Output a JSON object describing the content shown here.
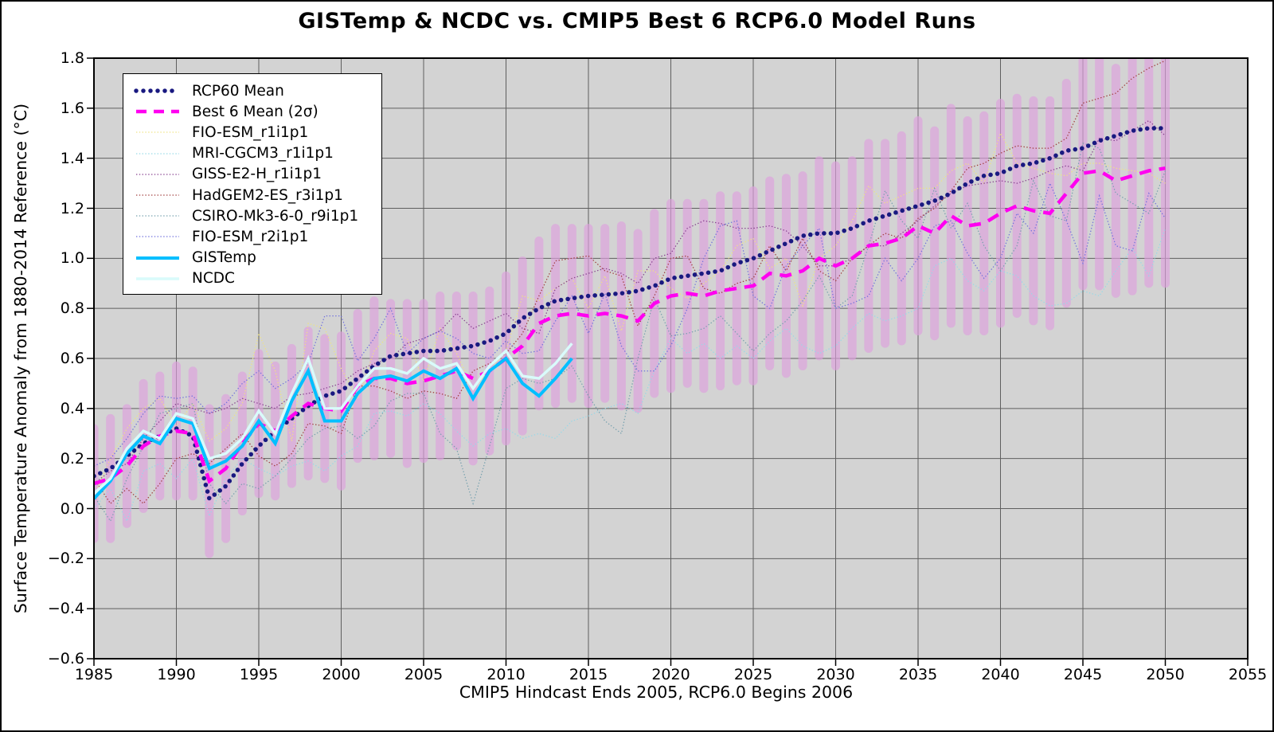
{
  "figure": {
    "title": "GISTemp & NCDC vs. CMIP5 Best 6 RCP6.0 Model Runs",
    "xlabel": "CMIP5 Hindcast Ends 2005, RCP6.0 Begins 2006",
    "ylabel": "Surface Temperature Anomaly from 1880-2014 Reference (°C)"
  },
  "colors": {
    "figure_bg": "#ffffff",
    "plot_bg": "#d3d3d3",
    "grid": "#5f5f5f",
    "spine": "#000000",
    "tick": "#000000"
  },
  "axes": {
    "x_tick_values": [
      1985,
      1990,
      1995,
      2000,
      2005,
      2010,
      2015,
      2020,
      2025,
      2030,
      2035,
      2040,
      2045,
      2050,
      2055
    ],
    "x_tick_labels": [
      "1985",
      "1990",
      "1995",
      "2000",
      "2005",
      "2010",
      "2015",
      "2020",
      "2025",
      "2030",
      "2035",
      "2040",
      "2045",
      "2050",
      "2055"
    ],
    "y_tick_values": [
      -0.6,
      -0.4,
      -0.2,
      0.0,
      0.2,
      0.4,
      0.6,
      0.8,
      1.0,
      1.2,
      1.4,
      1.6,
      1.8
    ],
    "y_tick_labels": [
      "−0.6",
      "−0.4",
      "−0.2",
      "0.0",
      "0.2",
      "0.4",
      "0.6",
      "0.8",
      "1.0",
      "1.2",
      "1.4",
      "1.6",
      "1.8"
    ]
  },
  "chart_data": {
    "type": "line",
    "title": "GISTemp & NCDC vs. CMIP5 Best 6 RCP6.0 Model Runs",
    "xlabel": "CMIP5 Hindcast Ends 2005, RCP6.0 Begins 2006",
    "ylabel": "Surface Temperature Anomaly from 1880-2014 Reference (°C)",
    "xlim": [
      1985,
      2055
    ],
    "ylim": [
      -0.6,
      1.8
    ],
    "grid": true,
    "legend_position": "upper left",
    "x": [
      1985,
      1986,
      1987,
      1988,
      1989,
      1990,
      1991,
      1992,
      1993,
      1994,
      1995,
      1996,
      1997,
      1998,
      1999,
      2000,
      2001,
      2002,
      2003,
      2004,
      2005,
      2006,
      2007,
      2008,
      2009,
      2010,
      2011,
      2012,
      2013,
      2014,
      2015,
      2016,
      2017,
      2018,
      2019,
      2020,
      2021,
      2022,
      2023,
      2024,
      2025,
      2026,
      2027,
      2028,
      2029,
      2030,
      2031,
      2032,
      2033,
      2034,
      2035,
      2036,
      2037,
      2038,
      2039,
      2040,
      2041,
      2042,
      2043,
      2044,
      2045,
      2046,
      2047,
      2048,
      2049,
      2050
    ],
    "band": {
      "label": "Best 6 Mean 2σ range bars",
      "color": "#dda0dd",
      "opacity": 0.65,
      "center_series": "best6",
      "halfwidth": [
        0.22,
        0.24,
        0.23,
        0.25,
        0.24,
        0.26,
        0.25,
        0.29,
        0.28,
        0.27,
        0.28,
        0.26,
        0.27,
        0.29,
        0.28,
        0.3,
        0.29,
        0.31,
        0.3,
        0.32,
        0.31,
        0.32,
        0.3,
        0.33,
        0.32,
        0.33,
        0.34,
        0.33,
        0.35,
        0.34,
        0.35,
        0.34,
        0.36,
        0.35,
        0.36,
        0.37,
        0.36,
        0.37,
        0.38,
        0.37,
        0.38,
        0.37,
        0.39,
        0.38,
        0.39,
        0.4,
        0.39,
        0.41,
        0.4,
        0.41,
        0.42,
        0.41,
        0.43,
        0.42,
        0.43,
        0.44,
        0.43,
        0.44,
        0.45,
        0.44,
        0.45,
        0.46,
        0.45,
        0.46,
        0.45,
        0.46
      ]
    },
    "series": [
      {
        "id": "rcp60",
        "name": "RCP60 Mean",
        "color": "#191980",
        "line_style": "dots",
        "line_width": 5.6,
        "draw_order": 7,
        "values": [
          0.13,
          0.16,
          0.21,
          0.26,
          0.29,
          0.32,
          0.29,
          0.04,
          0.09,
          0.18,
          0.25,
          0.31,
          0.36,
          0.41,
          0.45,
          0.47,
          0.52,
          0.57,
          0.61,
          0.62,
          0.63,
          0.63,
          0.64,
          0.65,
          0.67,
          0.7,
          0.76,
          0.8,
          0.83,
          0.84,
          0.85,
          0.855,
          0.86,
          0.87,
          0.89,
          0.92,
          0.93,
          0.94,
          0.95,
          0.98,
          1.0,
          1.03,
          1.06,
          1.09,
          1.1,
          1.1,
          1.12,
          1.15,
          1.17,
          1.19,
          1.21,
          1.23,
          1.26,
          1.3,
          1.33,
          1.34,
          1.37,
          1.38,
          1.4,
          1.43,
          1.44,
          1.47,
          1.49,
          1.51,
          1.52,
          1.52
        ]
      },
      {
        "id": "best6",
        "name": "Best 6 Mean (2σ)",
        "color": "#ff00f0",
        "line_style": "dash",
        "line_width": 4.5,
        "draw_order": 8,
        "values": [
          0.1,
          0.12,
          0.17,
          0.25,
          0.29,
          0.31,
          0.3,
          0.11,
          0.16,
          0.26,
          0.34,
          0.31,
          0.37,
          0.42,
          0.4,
          0.39,
          0.49,
          0.52,
          0.52,
          0.5,
          0.51,
          0.53,
          0.55,
          0.52,
          0.55,
          0.6,
          0.65,
          0.74,
          0.77,
          0.78,
          0.77,
          0.78,
          0.77,
          0.75,
          0.82,
          0.85,
          0.86,
          0.85,
          0.87,
          0.88,
          0.89,
          0.94,
          0.93,
          0.95,
          1.0,
          0.97,
          1.0,
          1.05,
          1.06,
          1.08,
          1.13,
          1.1,
          1.17,
          1.13,
          1.14,
          1.18,
          1.21,
          1.19,
          1.18,
          1.26,
          1.34,
          1.35,
          1.31,
          1.33,
          1.35,
          1.36
        ]
      },
      {
        "id": "fio_esm_r1",
        "name": "FIO-ESM_r1i1p1",
        "color": "#efe383",
        "line_style": "dotted",
        "line_width": 1.25,
        "draw_order": 1,
        "values": [
          0.05,
          0.2,
          0.32,
          0.4,
          0.44,
          0.33,
          0.42,
          0.27,
          0.32,
          0.42,
          0.7,
          0.55,
          0.27,
          0.74,
          0.72,
          0.56,
          0.44,
          0.63,
          0.7,
          0.68,
          0.51,
          0.72,
          0.62,
          0.48,
          0.55,
          0.63,
          0.85,
          0.83,
          0.88,
          0.92,
          0.8,
          0.93,
          0.71,
          0.95,
          0.95,
          0.88,
          0.84,
          0.9,
          0.95,
          1.05,
          1.08,
          0.96,
          1.0,
          0.81,
          1.0,
          1.05,
          1.15,
          1.29,
          1.22,
          1.25,
          1.28,
          1.28,
          1.35,
          1.38,
          1.3,
          1.5,
          1.38,
          1.36,
          1.34,
          1.33,
          1.38,
          1.38,
          1.36,
          1.35,
          1.34,
          1.3
        ]
      },
      {
        "id": "mri_cgcm3",
        "name": "MRI-CGCM3_r1i1p1",
        "color": "#97d9e8",
        "line_style": "dotted",
        "line_width": 1.25,
        "draw_order": 2,
        "values": [
          0.0,
          0.08,
          -0.05,
          0.15,
          0.18,
          0.12,
          0.2,
          -0.03,
          0.12,
          0.2,
          0.16,
          0.13,
          0.17,
          0.19,
          0.15,
          0.21,
          0.25,
          0.38,
          0.39,
          0.37,
          0.42,
          0.38,
          0.31,
          0.25,
          0.3,
          0.32,
          0.28,
          0.3,
          0.28,
          0.35,
          0.37,
          0.4,
          0.42,
          0.38,
          0.55,
          0.68,
          0.62,
          0.66,
          0.6,
          0.65,
          0.6,
          0.67,
          0.72,
          0.65,
          0.62,
          0.65,
          0.72,
          0.78,
          0.75,
          0.77,
          0.8,
          0.97,
          1.0,
          0.91,
          0.87,
          0.95,
          0.93,
          0.85,
          0.81,
          0.82,
          0.87,
          0.85,
          0.95,
          1.04,
          0.93,
          1.12
        ]
      },
      {
        "id": "giss_e2_h",
        "name": "GISS-E2-H_r1i1p1",
        "color": "#87408f",
        "line_style": "dotted",
        "line_width": 1.25,
        "draw_order": 3,
        "values": [
          0.1,
          0.15,
          0.18,
          0.28,
          0.35,
          0.42,
          0.4,
          0.38,
          0.4,
          0.44,
          0.42,
          0.4,
          0.45,
          0.46,
          0.48,
          0.5,
          0.55,
          0.58,
          0.6,
          0.66,
          0.68,
          0.71,
          0.78,
          0.72,
          0.75,
          0.78,
          0.72,
          0.7,
          0.88,
          0.92,
          0.94,
          0.96,
          0.94,
          0.9,
          1.0,
          1.02,
          1.12,
          1.15,
          1.14,
          1.12,
          1.12,
          1.13,
          1.11,
          1.05,
          0.97,
          0.97,
          1.0,
          1.05,
          1.05,
          1.1,
          1.15,
          1.21,
          1.26,
          1.29,
          1.3,
          1.31,
          1.3,
          1.32,
          1.35,
          1.37,
          1.35,
          1.48,
          1.47,
          1.51,
          1.55,
          1.49
        ]
      },
      {
        "id": "hadgem2_es",
        "name": "HadGEM2-ES_r3i1p1",
        "color": "#a03c3c",
        "line_style": "dotted",
        "line_width": 1.25,
        "draw_order": 4,
        "values": [
          0.12,
          0.02,
          0.08,
          0.02,
          0.1,
          0.2,
          0.22,
          0.18,
          0.24,
          0.3,
          0.21,
          0.17,
          0.22,
          0.34,
          0.33,
          0.3,
          0.49,
          0.49,
          0.47,
          0.44,
          0.47,
          0.46,
          0.44,
          0.55,
          0.58,
          0.62,
          0.7,
          0.85,
          0.99,
          1.0,
          1.01,
          0.95,
          0.93,
          0.73,
          0.85,
          1.0,
          1.01,
          0.88,
          0.86,
          0.9,
          0.92,
          1.05,
          0.95,
          1.08,
          0.95,
          0.91,
          1.0,
          1.05,
          1.1,
          1.08,
          1.16,
          1.2,
          1.27,
          1.36,
          1.38,
          1.42,
          1.45,
          1.44,
          1.44,
          1.48,
          1.62,
          1.64,
          1.66,
          1.72,
          1.76,
          1.79
        ]
      },
      {
        "id": "csiro_mk3",
        "name": "CSIRO-Mk3-6-0_r9i1p1",
        "color": "#76a0ae",
        "line_style": "dotted",
        "line_width": 1.25,
        "draw_order": 5,
        "values": [
          0.05,
          -0.05,
          0.12,
          0.25,
          0.38,
          0.4,
          0.42,
          0.1,
          0.02,
          0.1,
          0.08,
          0.13,
          0.2,
          0.28,
          0.32,
          0.33,
          0.28,
          0.33,
          0.43,
          0.46,
          0.46,
          0.3,
          0.24,
          0.02,
          0.25,
          0.48,
          0.52,
          0.5,
          0.52,
          0.57,
          0.45,
          0.35,
          0.3,
          0.6,
          0.84,
          0.69,
          0.7,
          0.72,
          0.77,
          0.7,
          0.63,
          0.7,
          0.75,
          0.83,
          0.93,
          0.8,
          0.85,
          1.05,
          1.27,
          1.15,
          1.08,
          1.28,
          1.12,
          1.22,
          1.05,
          0.95,
          1.05,
          1.31,
          1.17,
          1.15,
          1.46,
          1.44,
          1.26,
          1.22,
          1.18,
          1.35
        ]
      },
      {
        "id": "fio_esm_r2",
        "name": "FIO-ESM_r2i1p1",
        "color": "#7070dd",
        "line_style": "dotted",
        "line_width": 1.25,
        "draw_order": 6,
        "values": [
          0.17,
          0.2,
          0.28,
          0.38,
          0.45,
          0.44,
          0.45,
          0.38,
          0.42,
          0.5,
          0.55,
          0.48,
          0.52,
          0.58,
          0.77,
          0.77,
          0.59,
          0.68,
          0.8,
          0.62,
          0.68,
          0.71,
          0.68,
          0.62,
          0.6,
          0.67,
          0.62,
          0.63,
          0.75,
          0.85,
          0.7,
          0.86,
          0.65,
          0.55,
          0.55,
          0.65,
          0.8,
          1.0,
          1.13,
          1.15,
          0.85,
          0.8,
          0.97,
          1.05,
          1.12,
          0.8,
          0.82,
          0.85,
          1.0,
          0.91,
          1.0,
          1.13,
          1.15,
          1.02,
          0.92,
          1.0,
          1.18,
          1.1,
          1.3,
          1.15,
          0.98,
          1.25,
          1.05,
          1.03,
          1.26,
          1.16
        ]
      },
      {
        "id": "gistemp",
        "name": "GISTemp",
        "color": "#00bfff",
        "line_style": "solid",
        "line_width": 4,
        "draw_order": 9,
        "values": [
          0.04,
          0.11,
          0.22,
          0.29,
          0.26,
          0.36,
          0.34,
          0.16,
          0.19,
          0.25,
          0.35,
          0.26,
          0.43,
          0.55,
          0.35,
          0.35,
          0.46,
          0.52,
          0.53,
          0.51,
          0.55,
          0.52,
          0.56,
          0.44,
          0.55,
          0.6,
          0.5,
          0.45,
          0.52,
          0.6
        ]
      },
      {
        "id": "ncdc",
        "name": "NCDC",
        "color": "#d9fbfb",
        "line_style": "solid",
        "line_width": 3.4,
        "draw_order": 10,
        "values": [
          0.06,
          0.12,
          0.24,
          0.31,
          0.28,
          0.38,
          0.36,
          0.2,
          0.22,
          0.28,
          0.39,
          0.3,
          0.46,
          0.6,
          0.4,
          0.4,
          0.49,
          0.56,
          0.56,
          0.54,
          0.6,
          0.56,
          0.58,
          0.48,
          0.57,
          0.63,
          0.53,
          0.52,
          0.58,
          0.66
        ]
      }
    ]
  }
}
